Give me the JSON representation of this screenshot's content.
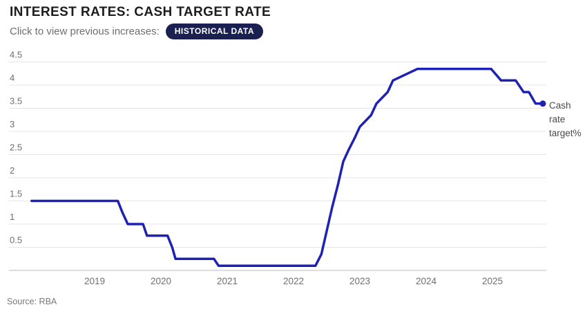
{
  "header": {
    "title": "INTEREST RATES: CASH TARGET RATE",
    "subtitle": "Click to view previous increases:",
    "cta_label": "HISTORICAL DATA"
  },
  "footer": {
    "source": "Source: RBA"
  },
  "colors": {
    "line": "#1e22b2",
    "end_dot": "#1e22b2",
    "pill_bg": "#1a2150",
    "pill_text": "#ffffff",
    "title_text": "#1d1d1d",
    "subtitle_text": "#6e6e6e",
    "axis_text": "#6f6f6f",
    "gridline": "#e4e4e4",
    "baseline": "#c8c8c8",
    "annotation_text": "#4a4a4a"
  },
  "chart_data": {
    "type": "line",
    "title": "Cash target rate",
    "xlabel": "",
    "ylabel": "",
    "grid": true,
    "legend_position": "right-end",
    "x_ticks": [
      2019,
      2020,
      2021,
      2022,
      2023,
      2024,
      2025
    ],
    "y_ticks": [
      0.5,
      1,
      1.5,
      2,
      2.5,
      3,
      3.5,
      4,
      4.5
    ],
    "ylim": [
      0,
      4.5
    ],
    "xlim": [
      2018.05,
      2025.9
    ],
    "end_label_lines": [
      "Cash",
      "rate",
      "target%"
    ],
    "series": [
      {
        "name": "Cash rate target%",
        "points": [
          [
            2018.05,
            1.5
          ],
          [
            2019.35,
            1.5
          ],
          [
            2019.42,
            1.25
          ],
          [
            2019.5,
            1.0
          ],
          [
            2019.73,
            1.0
          ],
          [
            2019.79,
            0.75
          ],
          [
            2020.1,
            0.75
          ],
          [
            2020.17,
            0.5
          ],
          [
            2020.22,
            0.25
          ],
          [
            2020.8,
            0.25
          ],
          [
            2020.87,
            0.1
          ],
          [
            2022.33,
            0.1
          ],
          [
            2022.42,
            0.35
          ],
          [
            2022.5,
            0.85
          ],
          [
            2022.58,
            1.35
          ],
          [
            2022.67,
            1.85
          ],
          [
            2022.75,
            2.35
          ],
          [
            2022.83,
            2.6
          ],
          [
            2022.92,
            2.85
          ],
          [
            2023.0,
            3.1
          ],
          [
            2023.17,
            3.35
          ],
          [
            2023.25,
            3.6
          ],
          [
            2023.42,
            3.85
          ],
          [
            2023.5,
            4.1
          ],
          [
            2023.87,
            4.35
          ],
          [
            2024.98,
            4.35
          ],
          [
            2025.13,
            4.1
          ],
          [
            2025.35,
            4.1
          ],
          [
            2025.47,
            3.85
          ],
          [
            2025.55,
            3.85
          ],
          [
            2025.65,
            3.6
          ],
          [
            2025.76,
            3.6
          ]
        ]
      }
    ]
  }
}
